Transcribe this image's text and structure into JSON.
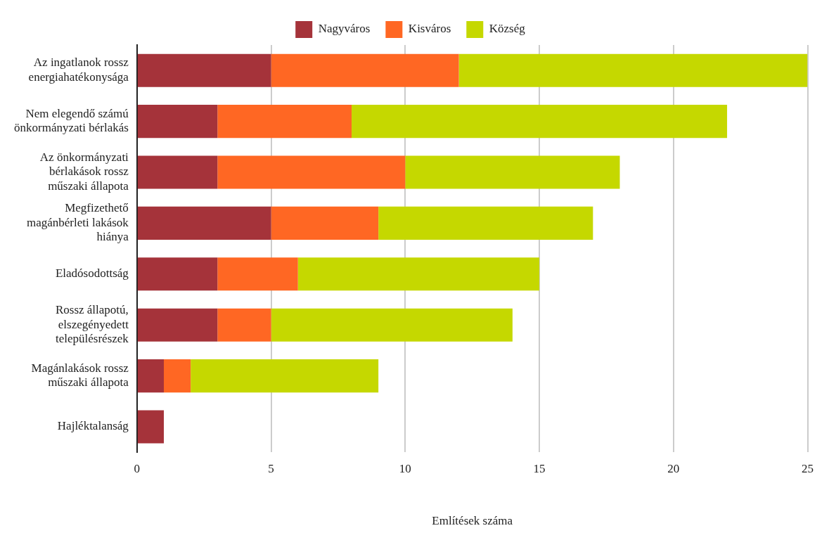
{
  "chart_data": {
    "type": "bar",
    "orientation": "horizontal",
    "stacked": true,
    "categories": [
      "Az ingatlanok rossz\nenergiahatékonysága",
      "Nem elegendő számú\nönkormányzati bérlakás",
      "Az önkormányzati\nbérlakások rossz\nműszaki állapota",
      "Megfizethető\nmagánbérleti lakások\nhiánya",
      "Eladósodottság",
      "Rossz állapotú,\nelszegényedett\ntelepülésrészek",
      "Magánlakások rossz\nműszaki állapota",
      "Hajléktalanság"
    ],
    "series": [
      {
        "name": "Nagyváros",
        "color": "#a5333a",
        "values": [
          5,
          3,
          3,
          5,
          3,
          3,
          1,
          1
        ]
      },
      {
        "name": "Kisváros",
        "color": "#ff6723",
        "values": [
          7,
          5,
          7,
          4,
          3,
          2,
          1,
          0
        ]
      },
      {
        "name": "Község",
        "color": "#c5d800",
        "values": [
          13,
          14,
          8,
          8,
          9,
          9,
          7,
          0
        ]
      }
    ],
    "xlabel": "Említések száma",
    "xlim": [
      0,
      25
    ],
    "xticks": [
      0,
      5,
      10,
      15,
      20,
      25
    ],
    "grid": "x",
    "legend": "top"
  }
}
